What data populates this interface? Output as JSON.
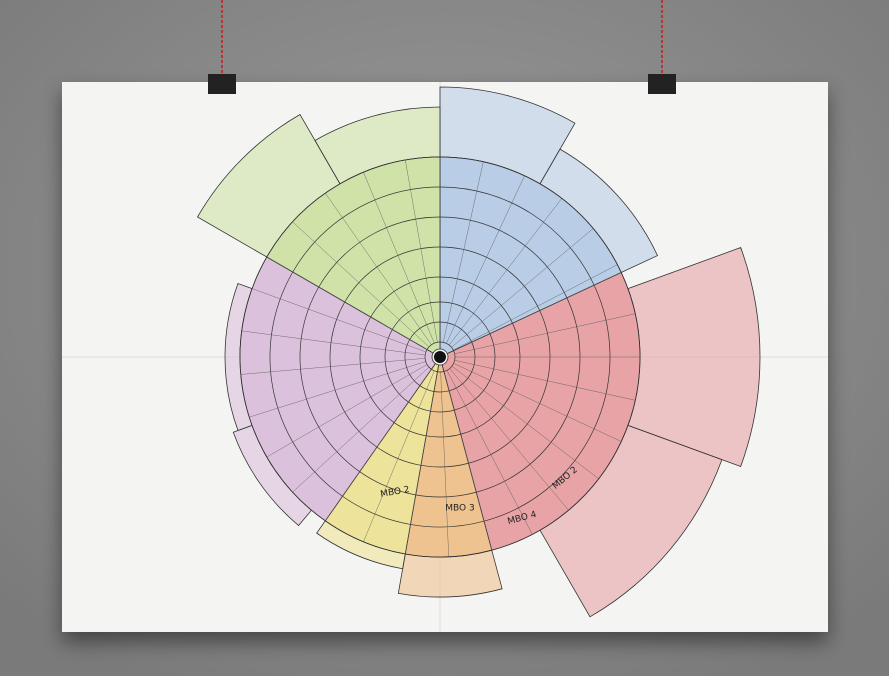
{
  "poster": {
    "segment_labels": [
      "MBO 2",
      "MBO 3",
      "MBO 4",
      "MBO 2"
    ]
  }
}
